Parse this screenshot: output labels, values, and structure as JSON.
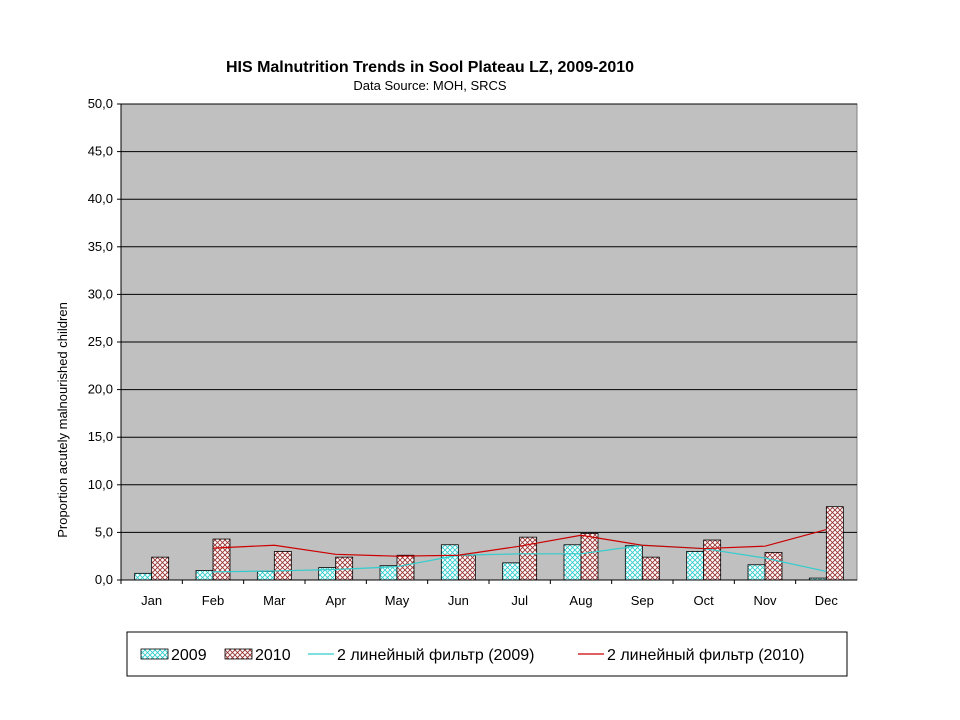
{
  "chart_data": {
    "type": "bar",
    "title": "HIS Malnutrition Trends in Sool Plateau LZ, 2009-2010",
    "subtitle": "Data Source: MOH, SRCS",
    "ylabel": "Proportion acutely malnourished children",
    "xlabel": "",
    "ylim": [
      0,
      50
    ],
    "yticks": [
      "0,0",
      "5,0",
      "10,0",
      "15,0",
      "20,0",
      "25,0",
      "30,0",
      "35,0",
      "40,0",
      "45,0",
      "50,0"
    ],
    "grid": true,
    "legend_position": "bottom",
    "categories": [
      "Jan",
      "Feb",
      "Mar",
      "Apr",
      "May",
      "Jun",
      "Jul",
      "Aug",
      "Sep",
      "Oct",
      "Nov",
      "Dec"
    ],
    "series": [
      {
        "name": "2009",
        "type": "bar",
        "color": "#33cccc",
        "values": [
          0.7,
          1.0,
          0.9,
          1.3,
          1.5,
          3.7,
          1.8,
          3.7,
          3.6,
          3.0,
          1.6,
          0.2
        ]
      },
      {
        "name": "2010",
        "type": "bar",
        "color": "#993333",
        "values": [
          2.4,
          4.3,
          3.0,
          2.4,
          2.6,
          2.6,
          4.5,
          4.9,
          2.4,
          4.2,
          2.9,
          7.7
        ]
      }
    ],
    "trendlines": [
      {
        "name": "2 линейный фильтр (2009)",
        "color": "#33cccc",
        "of_series": 0
      },
      {
        "name": "2 линейный фильтр (2010)",
        "color": "#cc0000",
        "of_series": 1
      }
    ]
  }
}
